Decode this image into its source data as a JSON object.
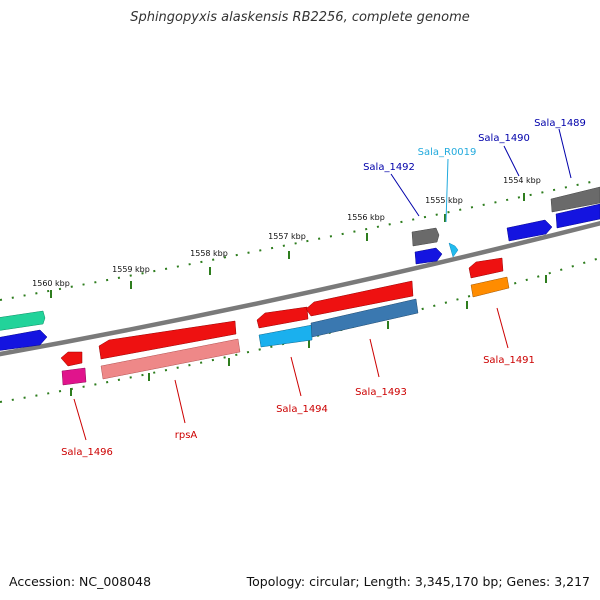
{
  "title": "Sphingopyxis alaskensis RB2256, complete genome",
  "footer": {
    "accession": "Accession: NC_008048",
    "summary": "Topology: circular; Length: 3,345,170 bp; Genes: 3,217"
  },
  "ruler": {
    "color": "#2e7d1e",
    "ticks": [
      "1560 kbp",
      "1559 kbp",
      "1558 kbp",
      "1557 kbp",
      "1556 kbp",
      "1555 kbp",
      "1554 kbp"
    ]
  },
  "features": [
    {
      "id": "sala-1489",
      "label": "Sala_1489",
      "strand": "+",
      "color": "#1a1aee",
      "label_color": "#0000aa"
    },
    {
      "id": "sala-1490",
      "label": "Sala_1490",
      "strand": "+",
      "color": "#1a1aee",
      "label_color": "#0000aa"
    },
    {
      "id": "sala-r0019",
      "label": "Sala_R0019",
      "strand": "+",
      "color": "#22bbee",
      "label_color": "#22aadd"
    },
    {
      "id": "sala-1492",
      "label": "Sala_1492",
      "strand": "+",
      "color": "#1a1aee",
      "label_color": "#0000aa"
    },
    {
      "id": "sala-1491",
      "label": "Sala_1491",
      "strand": "-",
      "color": "#ee1111",
      "label_color": "#cc0000"
    },
    {
      "id": "sala-1493",
      "label": "Sala_1493",
      "strand": "-",
      "color": "#ee1111",
      "label_color": "#cc0000"
    },
    {
      "id": "sala-1494",
      "label": "Sala_1494",
      "strand": "-",
      "color": "#ee1111",
      "label_color": "#cc0000"
    },
    {
      "id": "rpsa",
      "label": "rpsA",
      "strand": "-",
      "color": "#ee1111",
      "label_color": "#cc0000"
    },
    {
      "id": "sala-1496",
      "label": "Sala_1496",
      "strand": "-",
      "color": "#ee1111",
      "label_color": "#cc0000"
    }
  ]
}
